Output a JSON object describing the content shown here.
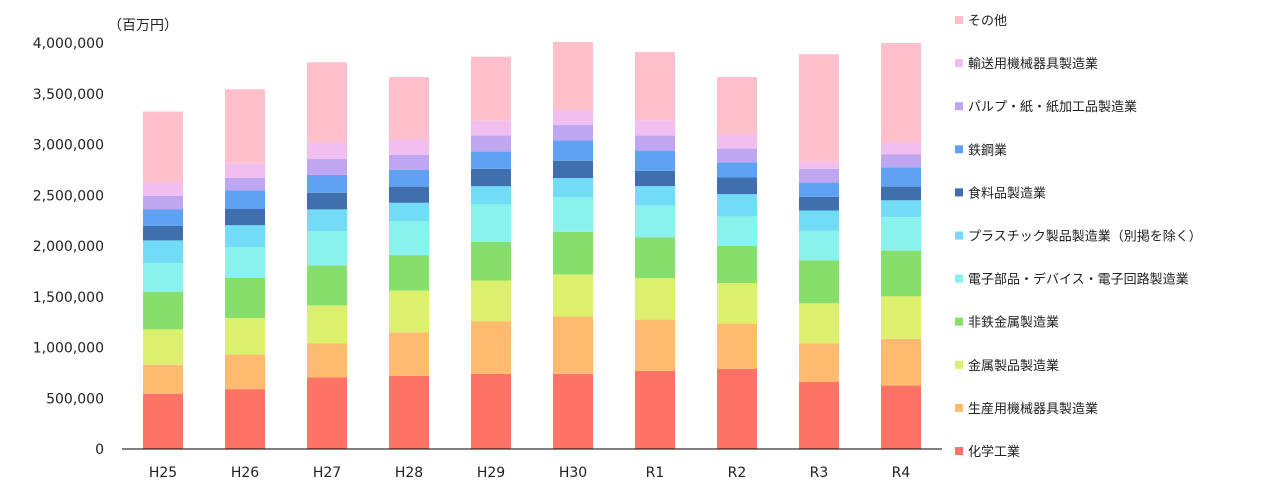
{
  "chart_data": {
    "type": "bar",
    "stacked": true,
    "unit_label": "（百万円）",
    "categories": [
      "H25",
      "H26",
      "H27",
      "H28",
      "H29",
      "H30",
      "R1",
      "R2",
      "R3",
      "R4"
    ],
    "yticks": [
      "4,000,000",
      "3,500,000",
      "3,000,000",
      "2,500,000",
      "2,000,000",
      "1,500,000",
      "1,000,000",
      "500,000",
      "0"
    ],
    "ylim": [
      0,
      4000000
    ],
    "legend_position": "right",
    "grid": false,
    "series": [
      {
        "name": "化学工業",
        "color": "#ff7266",
        "values": [
          545000,
          590000,
          705000,
          720000,
          740000,
          740000,
          770000,
          790000,
          660000,
          625000
        ]
      },
      {
        "name": "生産用機械器具製造業",
        "color": "#ffbb70",
        "values": [
          285000,
          340000,
          335000,
          430000,
          520000,
          565000,
          505000,
          445000,
          380000,
          460000
        ]
      },
      {
        "name": "金属製品製造業",
        "color": "#dcf06e",
        "values": [
          350000,
          360000,
          375000,
          410000,
          400000,
          415000,
          410000,
          400000,
          395000,
          420000
        ]
      },
      {
        "name": "非鉄金属製造業",
        "color": "#86de6c",
        "values": [
          370000,
          395000,
          395000,
          350000,
          380000,
          420000,
          400000,
          365000,
          425000,
          450000
        ]
      },
      {
        "name": "電子部品・デバイス・電子回路製造業",
        "color": "#8af2ec",
        "values": [
          280000,
          305000,
          335000,
          335000,
          370000,
          340000,
          315000,
          290000,
          290000,
          330000
        ]
      },
      {
        "name": "プラスチック製品製造業（別掲を除く）",
        "color": "#72dcf6",
        "values": [
          225000,
          215000,
          215000,
          180000,
          180000,
          190000,
          190000,
          220000,
          200000,
          165000
        ]
      },
      {
        "name": "食料品製造業",
        "color": "#3f6fad",
        "values": [
          145000,
          160000,
          165000,
          160000,
          170000,
          170000,
          150000,
          165000,
          135000,
          135000
        ]
      },
      {
        "name": "鉄鋼業",
        "color": "#5fa2f4",
        "values": [
          160000,
          185000,
          175000,
          165000,
          170000,
          200000,
          200000,
          150000,
          140000,
          190000
        ]
      },
      {
        "name": "パルプ・紙・紙加工品製造業",
        "color": "#bfa6f0",
        "values": [
          135000,
          120000,
          160000,
          150000,
          160000,
          155000,
          150000,
          135000,
          135000,
          130000
        ]
      },
      {
        "name": "輸送用機械器具製造業",
        "color": "#f2bef0",
        "values": [
          135000,
          145000,
          160000,
          150000,
          145000,
          145000,
          150000,
          135000,
          75000,
          115000
        ]
      },
      {
        "name": "その他",
        "color": "#ffc0cc",
        "values": [
          695000,
          730000,
          790000,
          615000,
          630000,
          670000,
          670000,
          570000,
          1055000,
          980000
        ]
      }
    ]
  }
}
